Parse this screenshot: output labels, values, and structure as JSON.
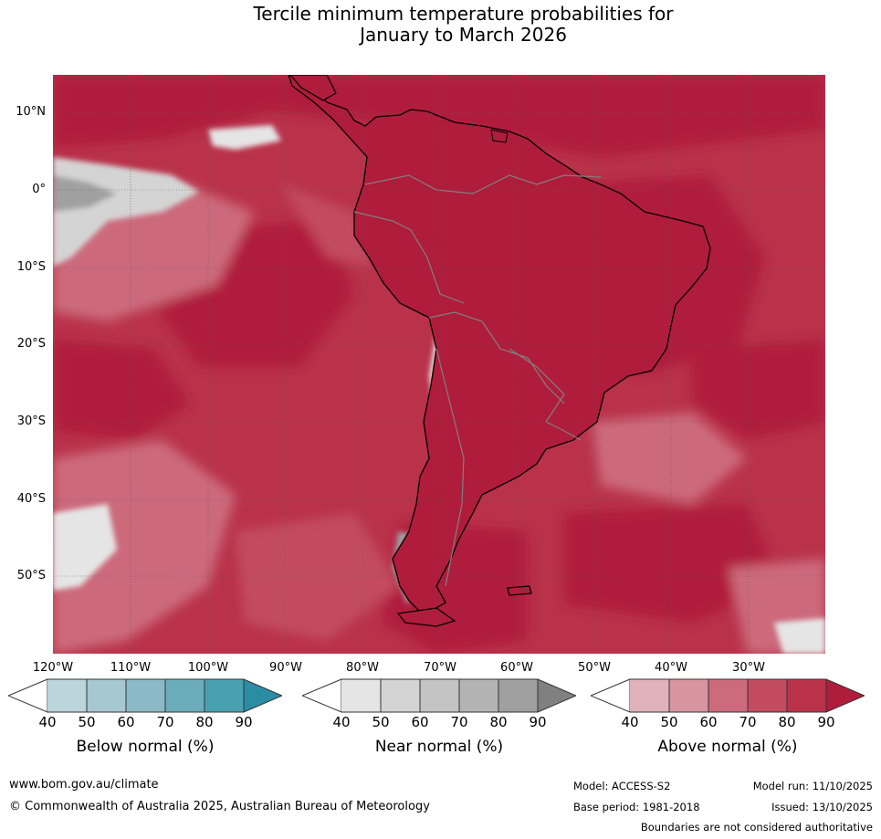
{
  "title_line1": "Tercile minimum temperature probabilities for",
  "title_line2": "January to March 2026",
  "map": {
    "lat_labels": [
      "10°N",
      "0°",
      "10°S",
      "20°S",
      "30°S",
      "40°S",
      "50°S"
    ],
    "lon_labels": [
      "120°W",
      "110°W",
      "100°W",
      "90°W",
      "80°W",
      "70°W",
      "60°W",
      "50°W",
      "40°W",
      "30°W"
    ],
    "dominant_category": "Above normal",
    "colors": {
      "above": [
        "#e0b3bb",
        "#d7959f",
        "#cc6b7b",
        "#c24b60",
        "#b9324a",
        "#b01c3c"
      ],
      "near": [
        "#e5e5e5",
        "#d4d4d4",
        "#c4c4c4",
        "#b3b3b3",
        "#a0a0a0",
        "#808080"
      ],
      "below": [
        "#bcd4db",
        "#a6c8d0",
        "#8bb9c5",
        "#6badba",
        "#48a0b1",
        "#2b8da3"
      ]
    }
  },
  "legends": [
    {
      "title": "Below normal (%)",
      "ticks": [
        "40",
        "50",
        "60",
        "70",
        "80",
        "90"
      ],
      "colors": [
        "#bcd4db",
        "#a6c8d0",
        "#8bb9c5",
        "#6badba",
        "#48a0b1",
        "#2b8da3"
      ]
    },
    {
      "title": "Near normal (%)",
      "ticks": [
        "40",
        "50",
        "60",
        "70",
        "80",
        "90"
      ],
      "colors": [
        "#e5e5e5",
        "#d4d4d4",
        "#c4c4c4",
        "#b3b3b3",
        "#a0a0a0",
        "#808080"
      ]
    },
    {
      "title": "Above normal (%)",
      "ticks": [
        "40",
        "50",
        "60",
        "70",
        "80",
        "90"
      ],
      "colors": [
        "#e0b3bb",
        "#d7959f",
        "#cc6b7b",
        "#c24b60",
        "#b9324a",
        "#b01c3c"
      ]
    }
  ],
  "footer": {
    "website": "www.bom.gov.au/climate",
    "copyright": "© Commonwealth of Australia 2025, Australian Bureau of Meteorology",
    "model": "Model: ACCESS-S2",
    "base_period": "Base period: 1981-2018",
    "model_run": "Model run: 11/10/2025",
    "issued": "Issued: 13/10/2025",
    "disclaimer": "Boundaries are not considered authoritative"
  }
}
